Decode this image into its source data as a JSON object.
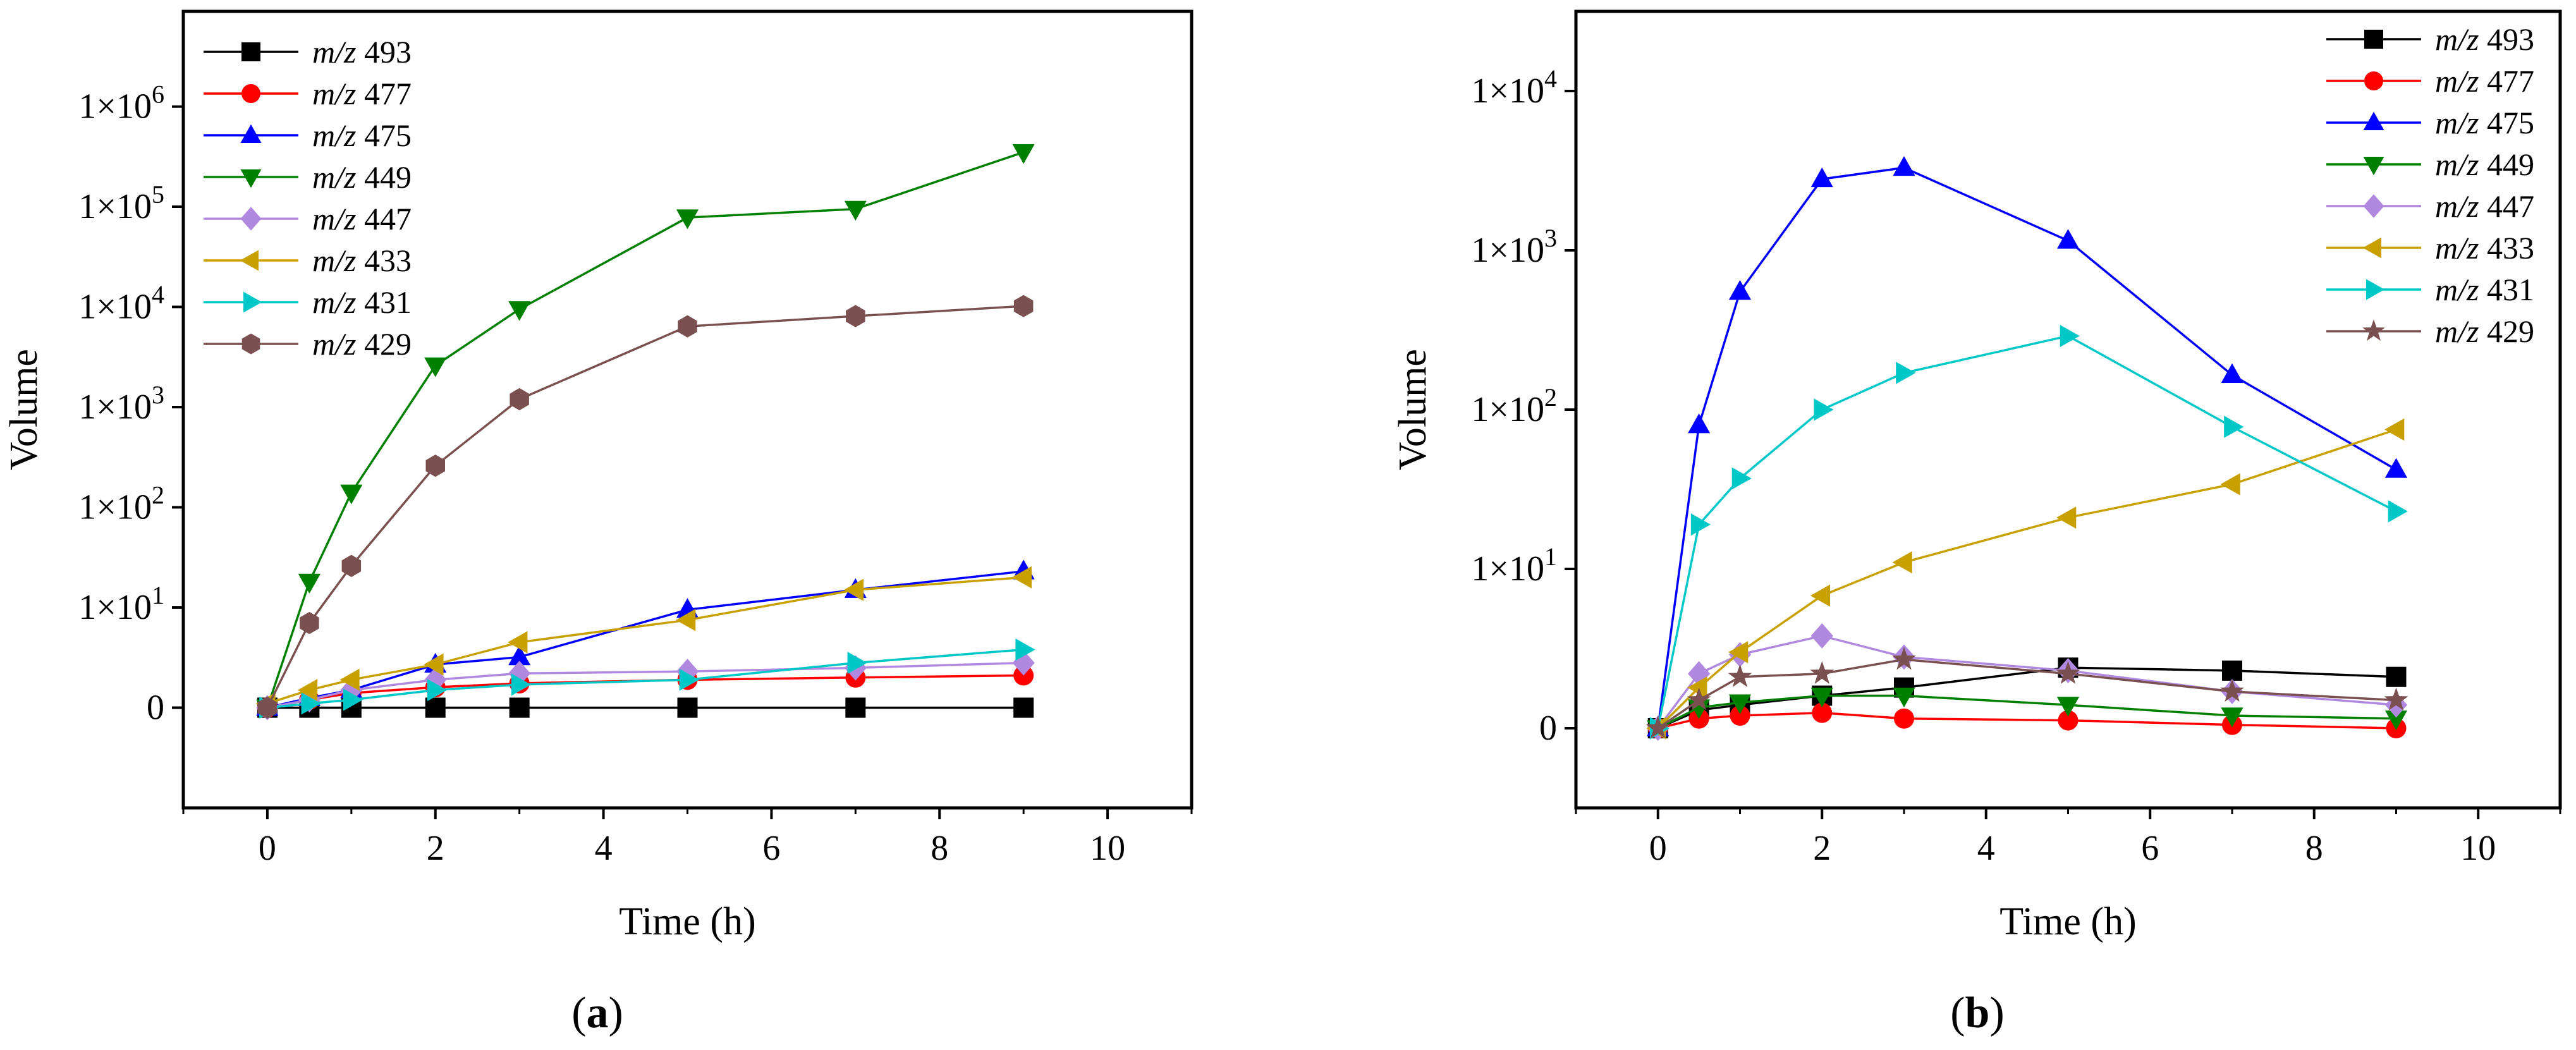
{
  "figure": {
    "panel_a_label": "(a)",
    "panel_b_label": "(b)"
  },
  "chart_data": [
    {
      "id": "a",
      "type": "line",
      "title": "",
      "panel_label": "(a)",
      "xlabel": "Time (h)",
      "ylabel": "Volume",
      "xlim": [
        -1,
        11
      ],
      "xticks": [
        0,
        2,
        4,
        6,
        8,
        10
      ],
      "y_scale": "log (origin labelled 0, data value 1 maps to baseline)",
      "ylim_log10": [
        -1,
        6.95
      ],
      "yticks": [
        {
          "label": "0",
          "log": 0
        },
        {
          "label": "1×10",
          "sup": "1",
          "log": 1
        },
        {
          "label": "1×10",
          "sup": "2",
          "log": 2
        },
        {
          "label": "1×10",
          "sup": "3",
          "log": 3
        },
        {
          "label": "1×10",
          "sup": "4",
          "log": 4
        },
        {
          "label": "1×10",
          "sup": "5",
          "log": 5
        },
        {
          "label": "1×10",
          "sup": "6",
          "log": 6
        }
      ],
      "legend_position": "top-left",
      "x": [
        0,
        0.5,
        1,
        2,
        3,
        5,
        7,
        9
      ],
      "series": [
        {
          "name": "m/z 493",
          "prefix": "m/z",
          "num": "493",
          "color": "#000000",
          "marker": "square",
          "values": [
            1,
            1,
            1,
            1,
            1,
            1,
            1,
            1
          ]
        },
        {
          "name": "m/z 477",
          "prefix": "m/z",
          "num": "477",
          "color": "#ff0000",
          "marker": "circle",
          "values": [
            1,
            1.2,
            1.4,
            1.6,
            1.75,
            1.9,
            2.0,
            2.1
          ]
        },
        {
          "name": "m/z 475",
          "prefix": "m/z",
          "num": "475",
          "color": "#0000ff",
          "marker": "triangle-up",
          "values": [
            1,
            1.25,
            1.5,
            2.7,
            3.2,
            9.5,
            15,
            23
          ]
        },
        {
          "name": "m/z 449",
          "prefix": "m/z",
          "num": "449",
          "color": "#008000",
          "marker": "triangle-down",
          "values": [
            1,
            18,
            140,
            2600,
            9500,
            78000,
            95000,
            350000
          ]
        },
        {
          "name": "m/z 447",
          "prefix": "m/z",
          "num": "447",
          "color": "#b088e0",
          "marker": "diamond",
          "values": [
            1,
            1.2,
            1.5,
            1.9,
            2.2,
            2.3,
            2.5,
            2.8
          ]
        },
        {
          "name": "m/z 433",
          "prefix": "m/z",
          "num": "433",
          "color": "#c8a000",
          "marker": "triangle-left",
          "values": [
            1.1,
            1.5,
            1.9,
            2.7,
            4.5,
            7.5,
            15,
            20
          ]
        },
        {
          "name": "m/z 431",
          "prefix": "m/z",
          "num": "431",
          "color": "#00c8c8",
          "marker": "triangle-right",
          "values": [
            1,
            1.1,
            1.2,
            1.5,
            1.7,
            1.9,
            2.8,
            3.8
          ]
        },
        {
          "name": "m/z 429",
          "prefix": "m/z",
          "num": "429",
          "color": "#7a5050",
          "marker": "hexagon",
          "values": [
            1,
            7,
            26,
            260,
            1200,
            6400,
            8100,
            10200
          ]
        }
      ]
    },
    {
      "id": "b",
      "type": "line",
      "title": "",
      "panel_label": "(b)",
      "xlabel": "Time (h)",
      "ylabel": "Volume",
      "xlim": [
        -1,
        11
      ],
      "xticks": [
        0,
        2,
        4,
        6,
        8,
        10
      ],
      "y_scale": "log (origin labelled 0, data value 1 maps to baseline)",
      "ylim_log10": [
        -0.5,
        4.5
      ],
      "yticks": [
        {
          "label": "0",
          "log": 0
        },
        {
          "label": "1×10",
          "sup": "1",
          "log": 1
        },
        {
          "label": "1×10",
          "sup": "2",
          "log": 2
        },
        {
          "label": "1×10",
          "sup": "3",
          "log": 3
        },
        {
          "label": "1×10",
          "sup": "4",
          "log": 4
        }
      ],
      "legend_position": "top-right",
      "x": [
        0,
        0.5,
        1,
        2,
        3,
        5,
        7,
        9
      ],
      "series": [
        {
          "name": "m/z 493",
          "prefix": "m/z",
          "num": "493",
          "color": "#000000",
          "marker": "square",
          "values": [
            1,
            1.3,
            1.4,
            1.6,
            1.8,
            2.4,
            2.3,
            2.1
          ]
        },
        {
          "name": "m/z 477",
          "prefix": "m/z",
          "num": "477",
          "color": "#ff0000",
          "marker": "circle",
          "values": [
            1,
            1.15,
            1.2,
            1.25,
            1.15,
            1.12,
            1.05,
            1.0
          ]
        },
        {
          "name": "m/z 475",
          "prefix": "m/z",
          "num": "475",
          "color": "#0000ff",
          "marker": "triangle-up",
          "values": [
            1,
            80,
            550,
            2800,
            3300,
            1150,
            165,
            42
          ]
        },
        {
          "name": "m/z 449",
          "prefix": "m/z",
          "num": "449",
          "color": "#008000",
          "marker": "triangle-down",
          "values": [
            1,
            1.35,
            1.45,
            1.6,
            1.6,
            1.4,
            1.2,
            1.15
          ]
        },
        {
          "name": "m/z 447",
          "prefix": "m/z",
          "num": "447",
          "color": "#b088e0",
          "marker": "diamond",
          "values": [
            1,
            2.2,
            2.9,
            3.8,
            2.8,
            2.3,
            1.7,
            1.4
          ]
        },
        {
          "name": "m/z 433",
          "prefix": "m/z",
          "num": "433",
          "color": "#c8a000",
          "marker": "triangle-left",
          "values": [
            1,
            1.8,
            3.0,
            6.8,
            11,
            21,
            34,
            75
          ]
        },
        {
          "name": "m/z 431",
          "prefix": "m/z",
          "num": "431",
          "color": "#00c8c8",
          "marker": "triangle-right",
          "values": [
            1,
            19,
            37,
            100,
            170,
            290,
            78,
            23
          ]
        },
        {
          "name": "m/z 429",
          "prefix": "m/z",
          "num": "429",
          "color": "#7a5050",
          "marker": "star",
          "values": [
            1,
            1.5,
            2.1,
            2.2,
            2.7,
            2.2,
            1.7,
            1.5
          ]
        }
      ]
    }
  ]
}
